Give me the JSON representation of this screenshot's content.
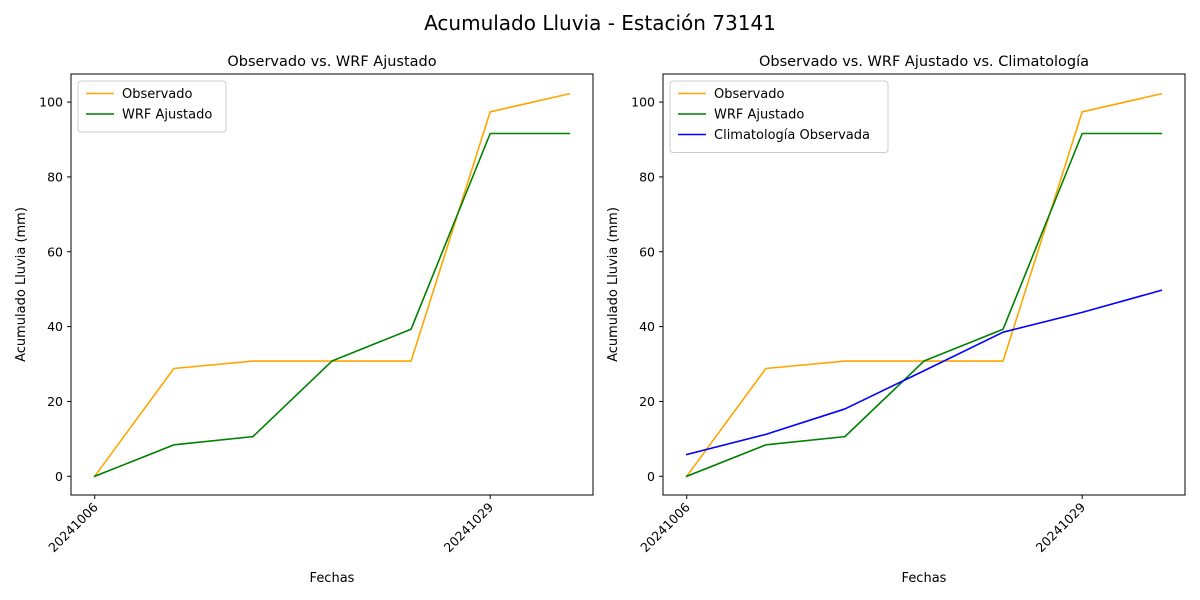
{
  "figure": {
    "suptitle": "Acumulado Lluvia - Estación 73141"
  },
  "chart_data": [
    {
      "type": "line",
      "title": "Observado vs. WRF Ajustado",
      "xlabel": "Fechas",
      "ylabel": "Acumulado Lluvia (mm)",
      "x": [
        0,
        1,
        2,
        3,
        4,
        5,
        6
      ],
      "x_tick_positions": [
        0,
        5
      ],
      "x_tick_labels": [
        "20241006",
        "20241029"
      ],
      "ylim": [
        -5,
        107.5
      ],
      "y_ticks": [
        0,
        20,
        40,
        60,
        80,
        100
      ],
      "legend_position": "upper-left",
      "grid": false,
      "series": [
        {
          "name": "Observado",
          "color": "#ffa500",
          "values": [
            0,
            28.8,
            30.8,
            30.8,
            30.8,
            97.4,
            102.2
          ]
        },
        {
          "name": "WRF Ajustado",
          "color": "#008000",
          "values": [
            0,
            8.4,
            10.6,
            30.8,
            39.3,
            91.6,
            91.6
          ]
        }
      ]
    },
    {
      "type": "line",
      "title": "Observado vs. WRF Ajustado vs. Climatología",
      "xlabel": "Fechas",
      "ylabel": "Acumulado Lluvia (mm)",
      "x": [
        0,
        1,
        2,
        3,
        4,
        5,
        6
      ],
      "x_tick_positions": [
        0,
        5
      ],
      "x_tick_labels": [
        "20241006",
        "20241029"
      ],
      "ylim": [
        -5,
        107.5
      ],
      "y_ticks": [
        0,
        20,
        40,
        60,
        80,
        100
      ],
      "legend_position": "upper-left",
      "grid": false,
      "series": [
        {
          "name": "Observado",
          "color": "#ffa500",
          "values": [
            0,
            28.8,
            30.8,
            30.8,
            30.8,
            97.4,
            102.2
          ]
        },
        {
          "name": "WRF Ajustado",
          "color": "#008000",
          "values": [
            0,
            8.4,
            10.6,
            30.8,
            39.3,
            91.6,
            91.6
          ]
        },
        {
          "name": "Climatología Observada",
          "color": "#0000ff",
          "values": [
            5.8,
            11.2,
            18.0,
            28.2,
            38.5,
            43.8,
            49.7
          ]
        }
      ]
    }
  ]
}
